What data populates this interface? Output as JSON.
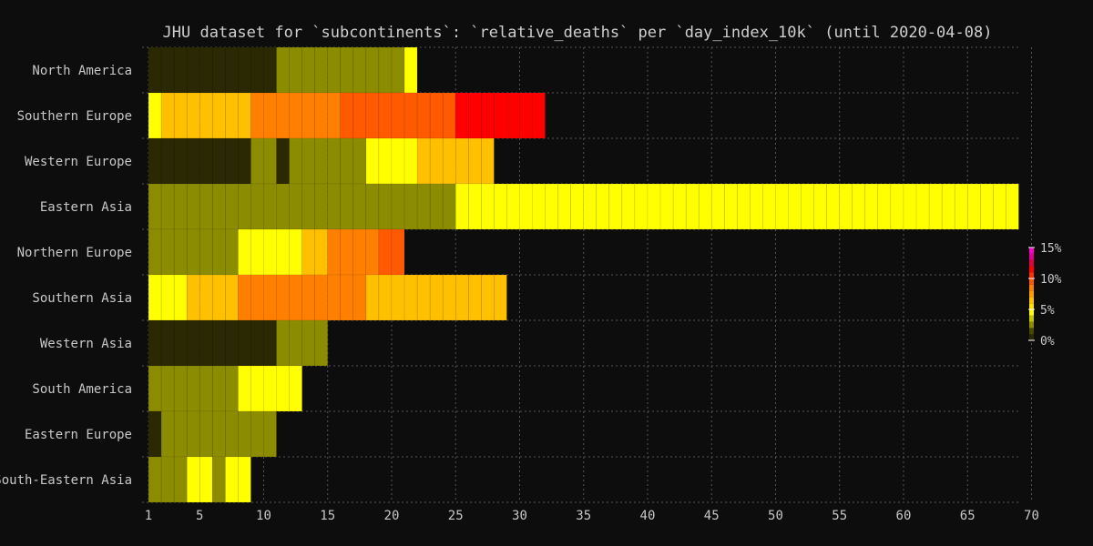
{
  "chart_data": {
    "type": "heatmap",
    "title": "JHU dataset for `subcontinents`: `relative_deaths` per `day_index_10k` (until 2020-04-08)",
    "x_ticks": [
      1,
      5,
      10,
      15,
      20,
      25,
      30,
      35,
      40,
      45,
      50,
      55,
      60,
      65,
      70
    ],
    "x_tick_labels": [
      "1",
      "5",
      "10",
      "15",
      "20",
      "25",
      "30",
      "35",
      "40",
      "45",
      "50",
      "55",
      "60",
      "65",
      "70"
    ],
    "xlim": [
      0.5,
      70.5
    ],
    "grid": true,
    "color_scale": {
      "min": 0,
      "max": 15,
      "unit": "%",
      "tick_labels": [
        "0%",
        "5%",
        "10%",
        "15%"
      ],
      "tick_values": [
        0,
        5,
        10,
        15
      ],
      "bins": [
        {
          "upper": 1,
          "color": "#2b2903"
        },
        {
          "upper": 2,
          "color": "#4a4800"
        },
        {
          "upper": 3,
          "color": "#8c8c00"
        },
        {
          "upper": 4,
          "color": "#c4c400"
        },
        {
          "upper": 5,
          "color": "#ffff00"
        },
        {
          "upper": 6,
          "color": "#ffe000"
        },
        {
          "upper": 7,
          "color": "#ffc000"
        },
        {
          "upper": 8,
          "color": "#ffa000"
        },
        {
          "upper": 9,
          "color": "#ff8000"
        },
        {
          "upper": 10,
          "color": "#ff5a00"
        },
        {
          "upper": 11,
          "color": "#ff3000"
        },
        {
          "upper": 12,
          "color": "#ff0000"
        },
        {
          "upper": 13,
          "color": "#e00040"
        },
        {
          "upper": 14,
          "color": "#e00090"
        },
        {
          "upper": 15,
          "color": "#ff00c8"
        }
      ]
    },
    "series": [
      {
        "name": "North America",
        "segments": [
          [
            1,
            10,
            0.6
          ],
          [
            11,
            20,
            2.5
          ],
          [
            21,
            21,
            4.6
          ]
        ]
      },
      {
        "name": "Southern Europe",
        "segments": [
          [
            1,
            1,
            4.6
          ],
          [
            2,
            8,
            6.6
          ],
          [
            9,
            15,
            8.6
          ],
          [
            16,
            24,
            9.6
          ],
          [
            25,
            31,
            11.6
          ]
        ]
      },
      {
        "name": "Western Europe",
        "segments": [
          [
            1,
            8,
            0.6
          ],
          [
            9,
            10,
            2.5
          ],
          [
            11,
            11,
            0.6
          ],
          [
            12,
            17,
            2.5
          ],
          [
            18,
            21,
            4.6
          ],
          [
            22,
            27,
            6.6
          ]
        ]
      },
      {
        "name": "Eastern Asia",
        "segments": [
          [
            1,
            24,
            2.5
          ],
          [
            25,
            68,
            4.6
          ]
        ]
      },
      {
        "name": "Northern Europe",
        "segments": [
          [
            1,
            7,
            2.5
          ],
          [
            8,
            12,
            4.6
          ],
          [
            13,
            14,
            6.6
          ],
          [
            15,
            18,
            8.6
          ],
          [
            19,
            20,
            9.6
          ]
        ]
      },
      {
        "name": "Southern Asia",
        "segments": [
          [
            1,
            3,
            4.6
          ],
          [
            4,
            7,
            6.6
          ],
          [
            8,
            17,
            8.6
          ],
          [
            18,
            28,
            6.6
          ]
        ]
      },
      {
        "name": "Western Asia",
        "segments": [
          [
            1,
            10,
            0.6
          ],
          [
            11,
            14,
            2.5
          ]
        ]
      },
      {
        "name": "South America",
        "segments": [
          [
            1,
            7,
            2.5
          ],
          [
            8,
            12,
            4.6
          ]
        ]
      },
      {
        "name": "Eastern Europe",
        "segments": [
          [
            1,
            1,
            0.6
          ],
          [
            2,
            10,
            2.5
          ]
        ]
      },
      {
        "name": "South-Eastern Asia",
        "segments": [
          [
            1,
            3,
            2.5
          ],
          [
            4,
            5,
            4.6
          ],
          [
            6,
            6,
            2.5
          ],
          [
            7,
            8,
            4.6
          ]
        ]
      }
    ]
  }
}
